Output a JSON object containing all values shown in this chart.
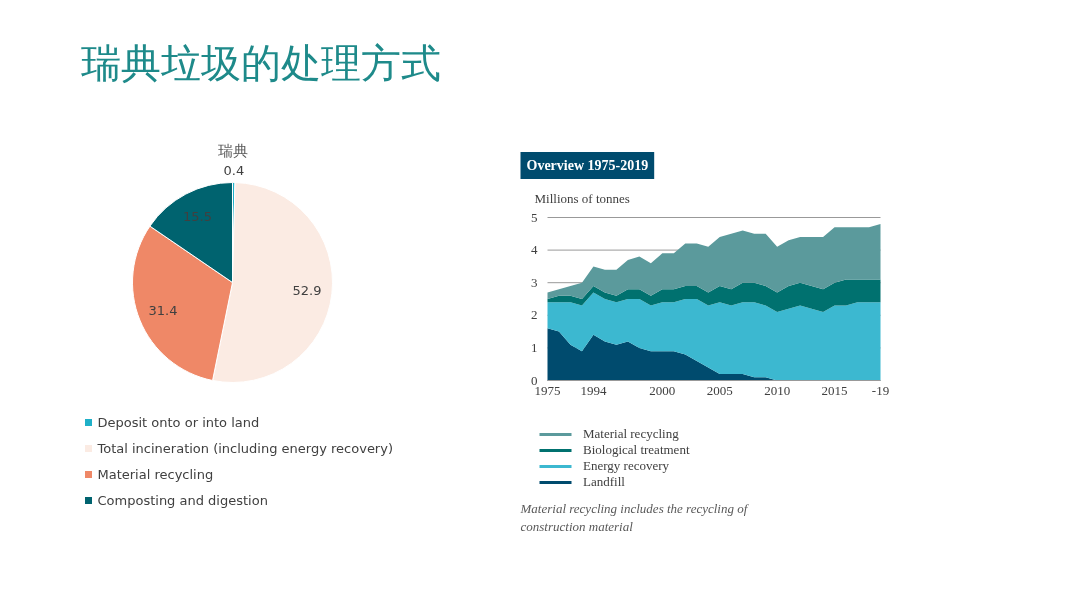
{
  "chart_data": [
    {
      "type": "pie",
      "title": "瑞典垃圾的处理方式",
      "subtitle": "瑞典",
      "data_labels": true,
      "legend": "bottom",
      "categories": [
        "Deposit onto or into land",
        "Total incineration (including energy recovery)",
        "Material recycling",
        "Composting and digestion"
      ],
      "values": [
        0.4,
        52.9,
        31.4,
        15.5
      ],
      "colors": [
        "#1fb0c8",
        "#fbebe3",
        "#ef8867",
        "#00636f"
      ]
    },
    {
      "type": "area",
      "stacked": true,
      "title": "Overview 1975-2019",
      "ylabel": "Millions of tonnes",
      "grid": "y",
      "legend": "bottom",
      "categories": [
        "1975",
        null,
        null,
        null,
        "1994",
        null,
        null,
        null,
        null,
        null,
        "2000",
        null,
        null,
        null,
        null,
        "2005",
        null,
        null,
        null,
        null,
        "2010",
        null,
        null,
        null,
        null,
        "2015",
        null,
        null,
        null,
        "-19"
      ],
      "ylim": [
        0,
        5
      ],
      "yticks": [
        0,
        1,
        2,
        3,
        4,
        5
      ],
      "series": [
        {
          "name": "Landfill",
          "color": "#004b6e",
          "values": [
            1.6,
            1.5,
            1.1,
            0.9,
            1.4,
            1.2,
            1.1,
            1.2,
            1.0,
            0.9,
            0.9,
            0.9,
            0.8,
            0.6,
            0.4,
            0.2,
            0.2,
            0.2,
            0.1,
            0.1,
            0,
            0,
            0,
            0,
            0,
            0,
            0,
            0,
            0,
            0
          ]
        },
        {
          "name": "Energy recovery",
          "color": "#3cb8d0",
          "values": [
            0.8,
            0.9,
            1.3,
            1.4,
            1.3,
            1.3,
            1.3,
            1.3,
            1.5,
            1.4,
            1.5,
            1.5,
            1.7,
            1.9,
            1.9,
            2.2,
            2.1,
            2.2,
            2.3,
            2.2,
            2.1,
            2.2,
            2.3,
            2.2,
            2.1,
            2.3,
            2.3,
            2.4,
            2.4,
            2.4
          ]
        },
        {
          "name": "Biological treatment",
          "color": "#00716f",
          "values": [
            0.1,
            0.2,
            0.2,
            0.2,
            0.2,
            0.2,
            0.2,
            0.3,
            0.3,
            0.3,
            0.4,
            0.4,
            0.4,
            0.4,
            0.4,
            0.5,
            0.5,
            0.6,
            0.6,
            0.6,
            0.6,
            0.7,
            0.7,
            0.7,
            0.7,
            0.7,
            0.8,
            0.7,
            0.7,
            0.7
          ]
        },
        {
          "name": "Material recycling",
          "color": "#5b9a9c",
          "values": [
            0.2,
            0.2,
            0.3,
            0.5,
            0.6,
            0.7,
            0.8,
            0.9,
            1.0,
            1.0,
            1.1,
            1.1,
            1.3,
            1.3,
            1.4,
            1.5,
            1.7,
            1.6,
            1.5,
            1.6,
            1.4,
            1.4,
            1.4,
            1.5,
            1.6,
            1.7,
            1.6,
            1.6,
            1.6,
            1.7
          ]
        }
      ],
      "annotations": [
        "Material recycling includes the recycling of construction material"
      ]
    }
  ]
}
